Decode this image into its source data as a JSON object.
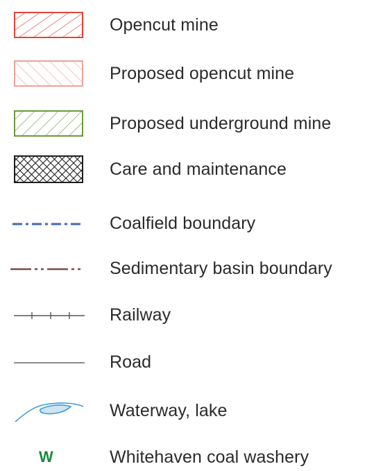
{
  "legend": {
    "items": [
      {
        "symbol": "opencut-mine-swatch",
        "label": "Opencut mine",
        "color": "#e0463a"
      },
      {
        "symbol": "proposed-opencut-mine-swatch",
        "label": "Proposed opencut mine",
        "color": "#eba39a"
      },
      {
        "symbol": "proposed-underground-mine-swatch",
        "label": "Proposed underground mine",
        "color": "#6b9a3a"
      },
      {
        "symbol": "care-and-maintenance-swatch",
        "label": "Care and maintenance",
        "color": "#1e1e1e"
      },
      {
        "symbol": "coalfield-boundary-line",
        "label": "Coalfield boundary",
        "color": "#3f68b8"
      },
      {
        "symbol": "sedimentary-basin-boundary-line",
        "label": "Sedimentary basin boundary",
        "color": "#7a4a48"
      },
      {
        "symbol": "railway-line",
        "label": "Railway",
        "color": "#555555"
      },
      {
        "symbol": "road-line",
        "label": "Road",
        "color": "#666666"
      },
      {
        "symbol": "waterway-lake-icon",
        "label": "Waterway, lake",
        "color": "#3a9bd8"
      },
      {
        "symbol": "coal-washery-icon",
        "label": "Whitehaven coal washery",
        "glyph": "W",
        "color": "#1b8a3a"
      }
    ]
  }
}
